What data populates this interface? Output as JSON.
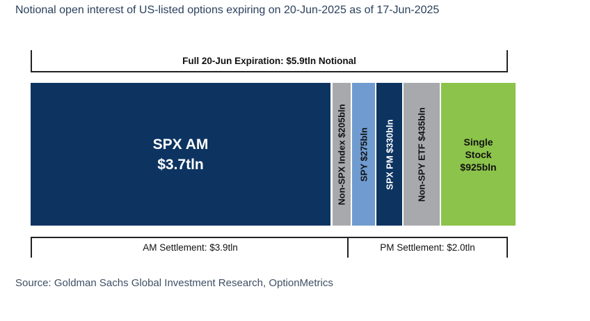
{
  "title": "Notional open interest of US-listed options expiring on 20-Jun-2025 as of 17-Jun-2025",
  "source": "Source: Goldman Sachs Global Investment Research, OptionMetrics",
  "chart_data": {
    "type": "bar",
    "orientation": "horizontal-stacked",
    "title": "Notional open interest of US-listed options expiring on 20-Jun-2025 as of 17-Jun-2025",
    "units": "USD billions",
    "total_label": "Full 20-Jun Expiration: $5.9tln Notional",
    "total": 5900,
    "categories": [
      {
        "name": "SPX AM",
        "label_lines": [
          "SPX AM",
          "$3.7tln"
        ],
        "value": 3700,
        "color": "#0d3461",
        "text_color": "#ffffff",
        "vertical": false
      },
      {
        "name": "Non-SPX Index",
        "label": "Non-SPX Index $205bln",
        "value": 205,
        "color": "#a7a9ac",
        "text_color": "#111111",
        "vertical": true
      },
      {
        "name": "SPY",
        "label": "SPY $275bln",
        "value": 275,
        "color": "#6f9bd0",
        "text_color": "#111111",
        "vertical": true
      },
      {
        "name": "SPX PM",
        "label": "SPX PM $330bln",
        "value": 330,
        "color": "#0d3461",
        "text_color": "#ffffff",
        "vertical": true
      },
      {
        "name": "Non-SPY ETF",
        "label": "Non-SPY ETF $435bln",
        "value": 435,
        "color": "#a7a9ac",
        "text_color": "#111111",
        "vertical": true
      },
      {
        "name": "Single Stock",
        "label_lines": [
          "Single",
          "Stock",
          "$925bln"
        ],
        "value": 925,
        "color": "#8cc34a",
        "text_color": "#111111",
        "vertical": false
      }
    ],
    "groups": [
      {
        "name": "AM Settlement",
        "label": "AM Settlement: $3.9tln",
        "value": 3900
      },
      {
        "name": "PM Settlement",
        "label": "PM Settlement: $2.0tln",
        "value": 2000
      }
    ]
  }
}
